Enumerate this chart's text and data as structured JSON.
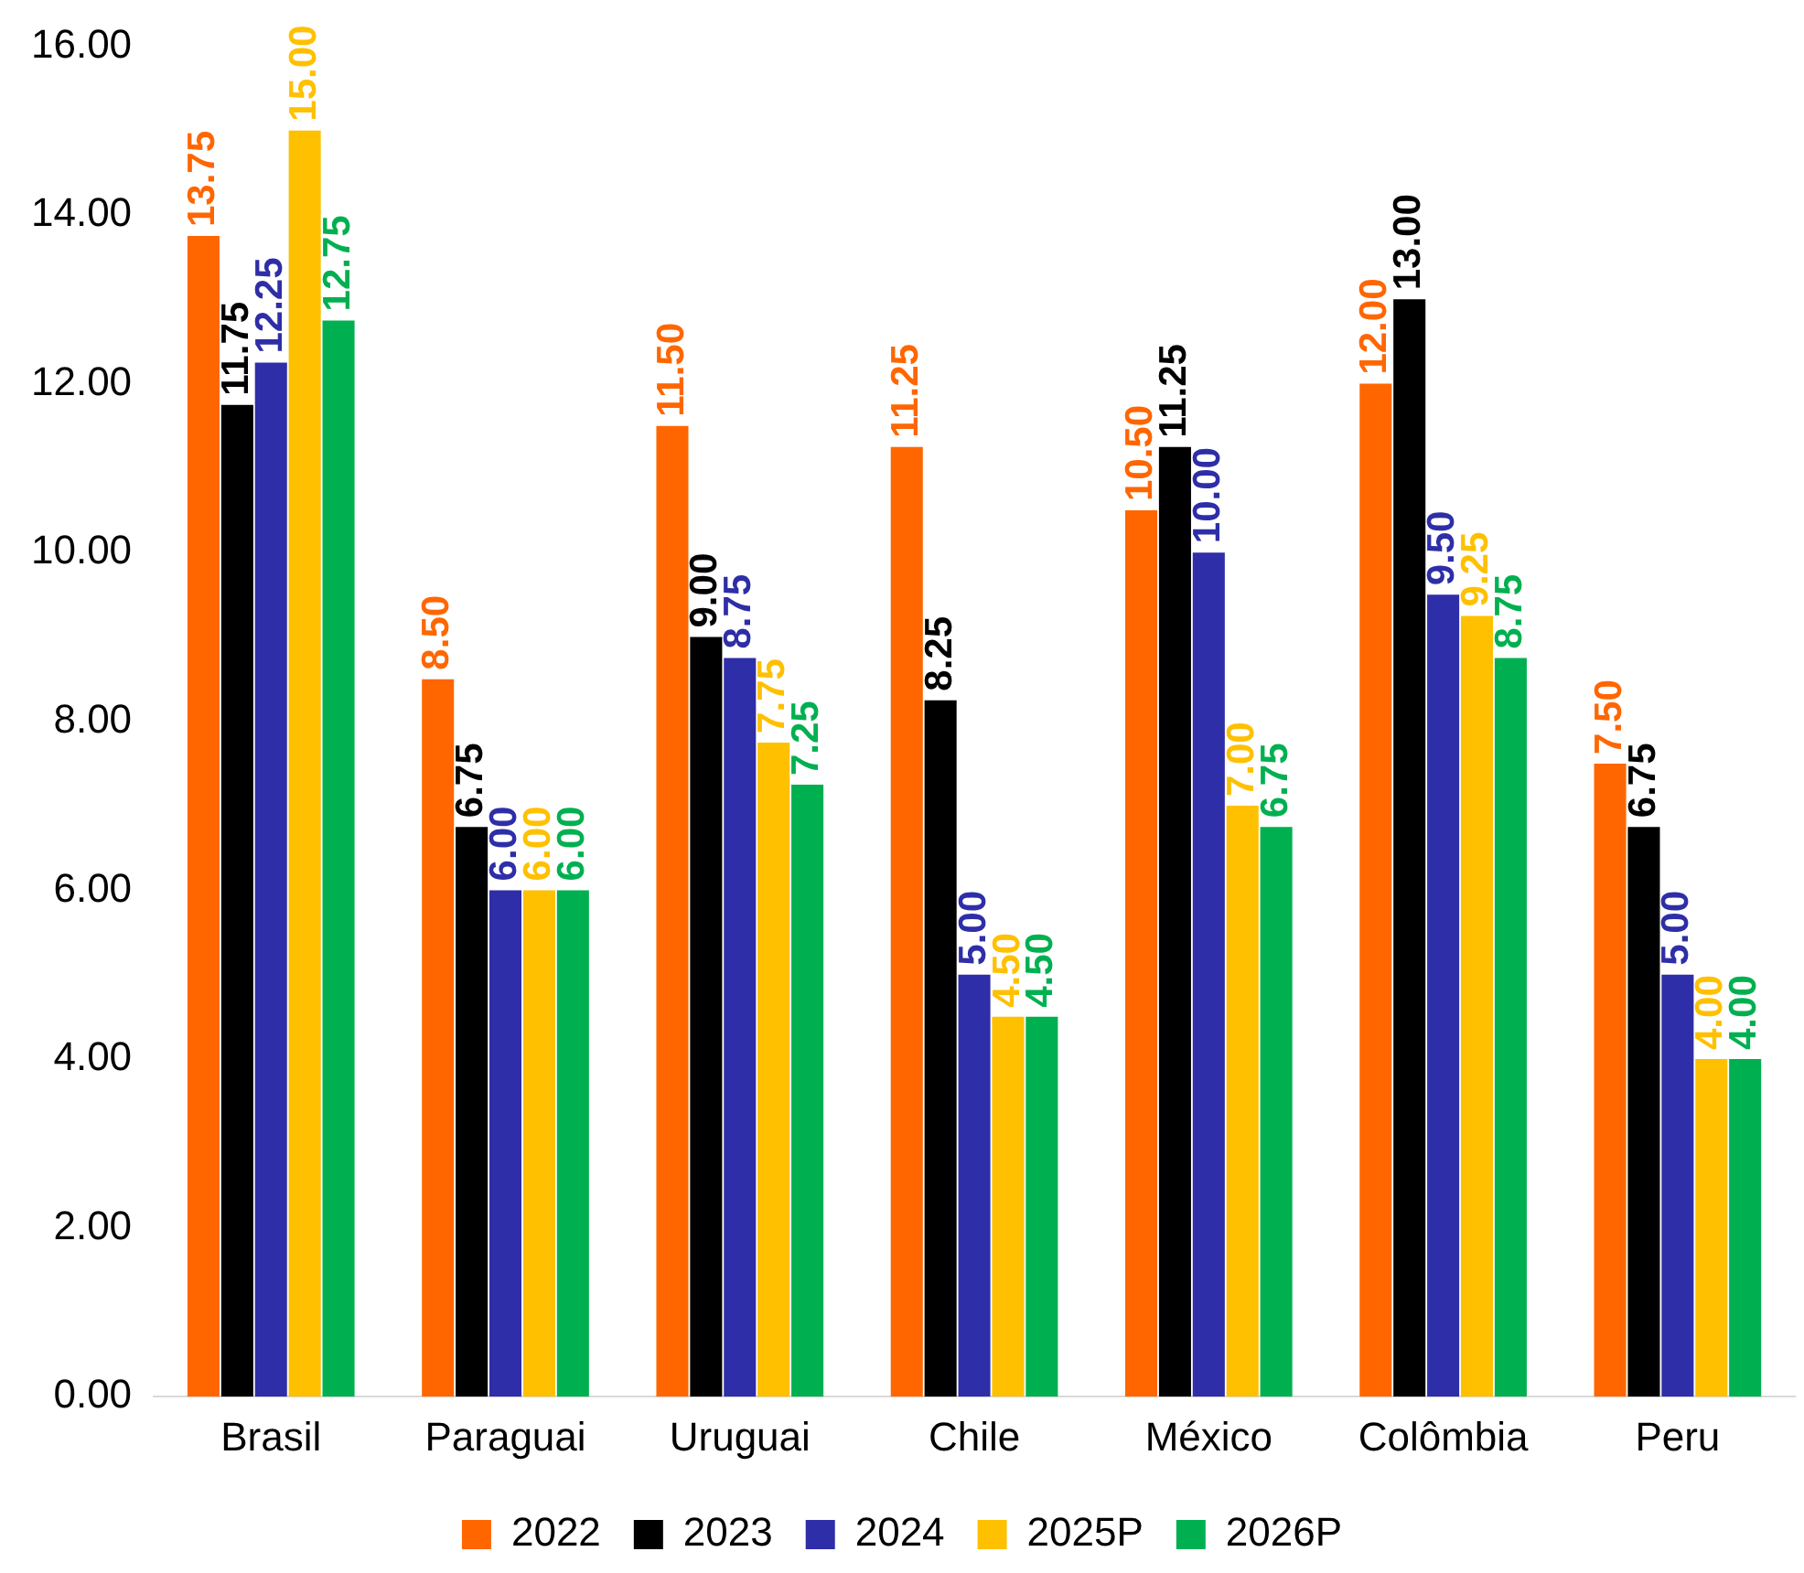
{
  "chart_data": {
    "type": "bar",
    "categories": [
      "Brasil",
      "Paraguai",
      "Uruguai",
      "Chile",
      "México",
      "Colômbia",
      "Peru"
    ],
    "series": [
      {
        "name": "2022",
        "color": "#ff6600",
        "values": [
          13.75,
          8.5,
          11.5,
          11.25,
          10.5,
          12,
          7.5
        ],
        "value_labels": [
          "13.75",
          "8.50",
          "11.50",
          "11.25",
          "10.50",
          "12.00",
          "7.50"
        ]
      },
      {
        "name": "2023",
        "color": "#000000",
        "values": [
          11.75,
          6.75,
          9,
          8.25,
          11.25,
          13,
          6.75
        ],
        "value_labels": [
          "11.75",
          "6.75",
          "9.00",
          "8.25",
          "11.25",
          "13.00",
          "6.75"
        ]
      },
      {
        "name": "2024",
        "color": "#2e2ea8",
        "values": [
          12.25,
          6,
          8.75,
          5,
          10,
          9.5,
          5
        ],
        "value_labels": [
          "12.25",
          "6.00",
          "8.75",
          "5.00",
          "10.00",
          "9.50",
          "5.00"
        ]
      },
      {
        "name": "2025P",
        "color": "#ffc000",
        "values": [
          15,
          6,
          7.75,
          4.5,
          7,
          9.25,
          4
        ],
        "value_labels": [
          "15.00",
          "6.00",
          "7.75",
          "4.50",
          "7.00",
          "9.25",
          "4.00"
        ]
      },
      {
        "name": "2026P",
        "color": "#00b050",
        "values": [
          12.75,
          6,
          7.25,
          4.5,
          6.75,
          8.75,
          4
        ],
        "value_labels": [
          "12.75",
          "6.00",
          "7.25",
          "4.50",
          "6.75",
          "8.75",
          "4.00"
        ]
      }
    ],
    "ylim": [
      0,
      16
    ],
    "yticks": [
      {
        "value": 0,
        "label": "0.00"
      },
      {
        "value": 2,
        "label": "2.00"
      },
      {
        "value": 4,
        "label": "4.00"
      },
      {
        "value": 6,
        "label": "6.00"
      },
      {
        "value": 8,
        "label": "8.00"
      },
      {
        "value": 10,
        "label": "10.00"
      },
      {
        "value": 12,
        "label": "12.00"
      },
      {
        "value": 14,
        "label": "14.00"
      },
      {
        "value": 16,
        "label": "16.00"
      }
    ],
    "grid": false,
    "legend": "bottom"
  }
}
